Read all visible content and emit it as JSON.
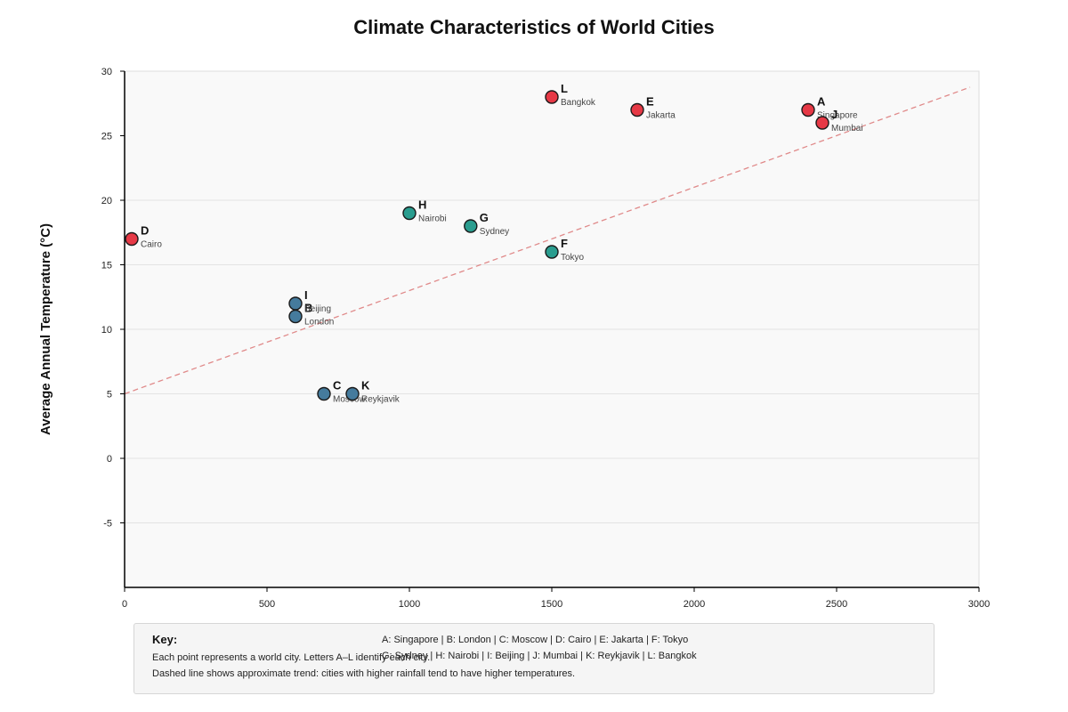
{
  "chart_data": {
    "type": "scatter",
    "title": "Climate Characteristics of World Cities",
    "xlabel": "",
    "ylabel": "Average Annual Temperature (°C)",
    "xlim": [
      0,
      3000
    ],
    "ylim": [
      -10,
      30
    ],
    "x_ticks": [
      "0",
      "500",
      "1000",
      "1500",
      "2000",
      "2500",
      "3000"
    ],
    "y_ticks": [
      "-5",
      "0",
      "5",
      "10",
      "15",
      "20",
      "30"
    ],
    "y_ticks_overlap": [
      "25"
    ],
    "grid": true,
    "trend_line": {
      "x": [
        0,
        3000
      ],
      "y": [
        5,
        29
      ]
    },
    "colors": {
      "hot": "#e63946",
      "mild": "#2a9d8f",
      "cool": "#457b9d",
      "trend": "#e08a8a"
    },
    "points": [
      {
        "letter": "A",
        "city": "Singapore",
        "x": 2400,
        "y": 27,
        "group": "hot"
      },
      {
        "letter": "B",
        "city": "London",
        "x": 600,
        "y": 11,
        "group": "cool"
      },
      {
        "letter": "C",
        "city": "Moscow",
        "x": 700,
        "y": 5,
        "group": "cool"
      },
      {
        "letter": "D",
        "city": "Cairo",
        "x": 25,
        "y": 17,
        "group": "hot"
      },
      {
        "letter": "E",
        "city": "Jakarta",
        "x": 1800,
        "y": 27,
        "group": "hot"
      },
      {
        "letter": "F",
        "city": "Tokyo",
        "x": 1500,
        "y": 16,
        "group": "mild"
      },
      {
        "letter": "G",
        "city": "Sydney",
        "x": 1215,
        "y": 18,
        "group": "mild"
      },
      {
        "letter": "H",
        "city": "Nairobi",
        "x": 1000,
        "y": 19,
        "group": "mild"
      },
      {
        "letter": "I",
        "city": "Beijing",
        "x": 600,
        "y": 12,
        "group": "cool"
      },
      {
        "letter": "J",
        "city": "Mumbai",
        "x": 2450,
        "y": 26,
        "group": "hot"
      },
      {
        "letter": "K",
        "city": "Reykjavik",
        "x": 800,
        "y": 5,
        "group": "cool"
      },
      {
        "letter": "L",
        "city": "Bangkok",
        "x": 1500,
        "y": 28,
        "group": "hot"
      }
    ]
  },
  "key": {
    "title": "Key:",
    "notes": [
      "Each point represents a world city. Letters A–L identify each city.",
      "Dashed line shows approximate trend: cities with higher rainfall tend to have higher temperatures."
    ],
    "legend_lines": [
      "A: Singapore | B: London | C: Moscow | D: Cairo | E: Jakarta | F: Tokyo",
      "G: Sydney | H: Nairobi | I: Beijing | J: Mumbai | K: Reykjavik | L: Bangkok"
    ]
  }
}
